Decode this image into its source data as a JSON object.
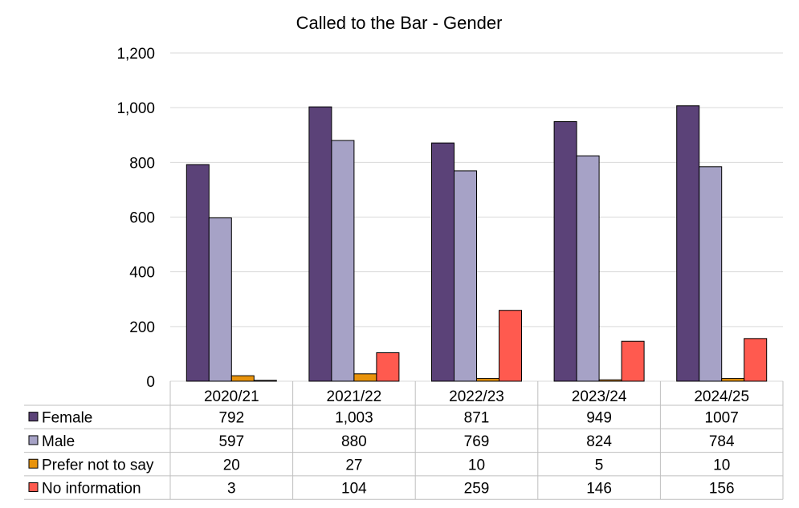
{
  "chart_data": {
    "type": "bar",
    "title": "Called to the Bar - Gender",
    "categories": [
      "2020/21",
      "2021/22",
      "2022/23",
      "2023/24",
      "2024/25"
    ],
    "ylim": [
      0,
      1200
    ],
    "yticks": [
      0,
      200,
      400,
      600,
      800,
      1000,
      1200
    ],
    "ytick_labels": [
      "0",
      "200",
      "400",
      "600",
      "800",
      "1,000",
      "1,200"
    ],
    "grid": true,
    "legend_placement": "data-table-below",
    "series": [
      {
        "name": "Female",
        "color": "#5b4278",
        "values": [
          792,
          1003,
          871,
          949,
          1007
        ],
        "labels": [
          "792",
          "1,003",
          "871",
          "949",
          "1007"
        ]
      },
      {
        "name": "Male",
        "color": "#a6a2c6",
        "values": [
          597,
          880,
          769,
          824,
          784
        ],
        "labels": [
          "597",
          "880",
          "769",
          "824",
          "784"
        ]
      },
      {
        "name": "Prefer not to say",
        "color": "#e8930c",
        "values": [
          20,
          27,
          10,
          5,
          10
        ],
        "labels": [
          "20",
          "27",
          "10",
          "5",
          "10"
        ]
      },
      {
        "name": "No information",
        "color": "#ff5a4f",
        "values": [
          3,
          104,
          259,
          146,
          156
        ],
        "labels": [
          "3",
          "104",
          "259",
          "146",
          "156"
        ]
      }
    ]
  }
}
